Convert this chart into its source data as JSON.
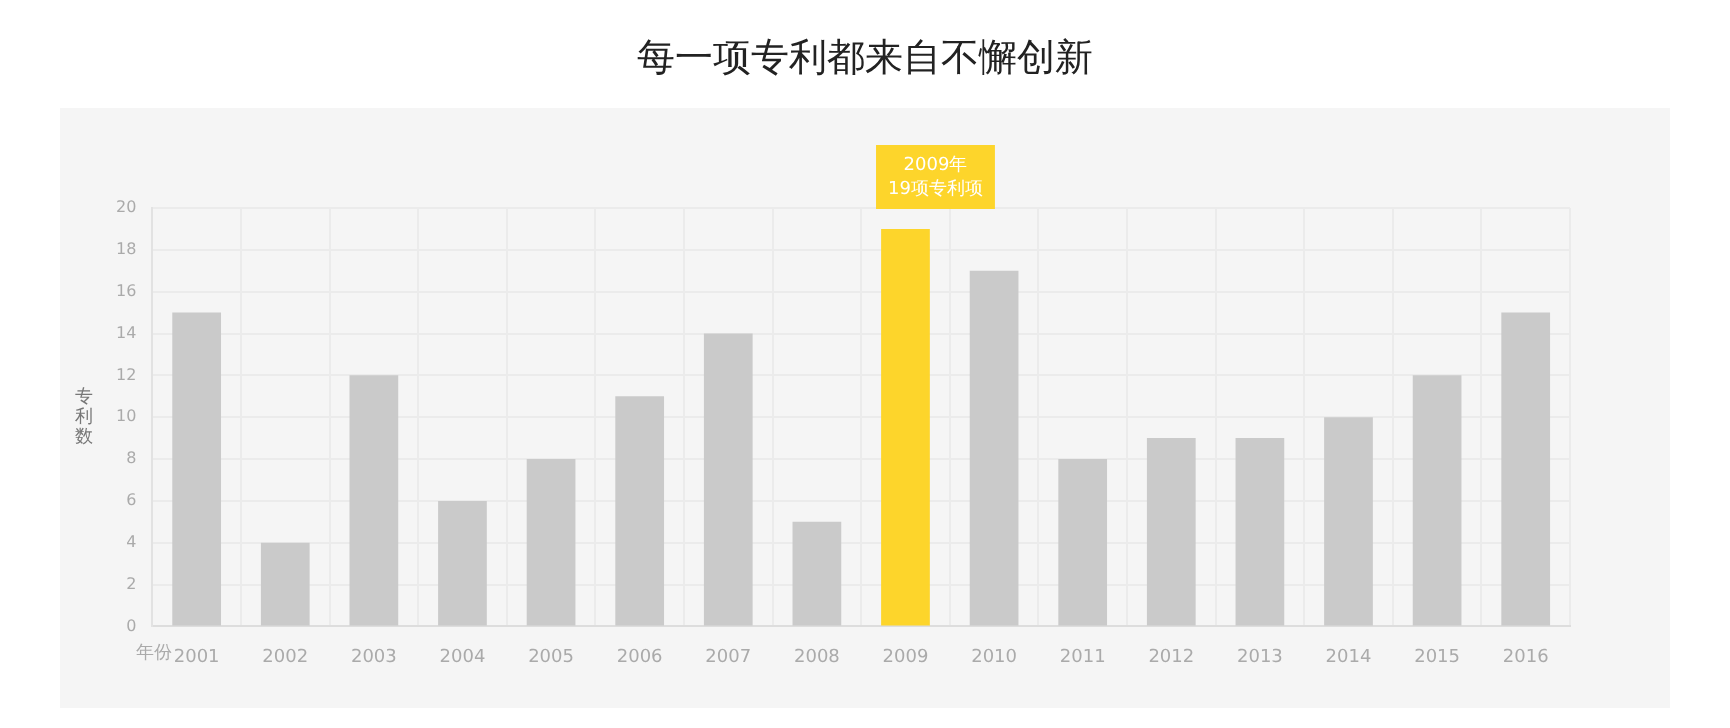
{
  "chart_data": {
    "type": "bar",
    "title": "每一项专利都来自不懈创新",
    "xlabel": "年份",
    "ylabel": "专利数",
    "categories": [
      "2001",
      "2002",
      "2003",
      "2004",
      "2005",
      "2006",
      "2007",
      "2008",
      "2009",
      "2010",
      "2011",
      "2012",
      "2013",
      "2014",
      "2015",
      "2016"
    ],
    "values": [
      15,
      4,
      12,
      6,
      8,
      11,
      14,
      5,
      19,
      17,
      8,
      9,
      9,
      10,
      12,
      15
    ],
    "colors": [
      "#cacaca",
      "#cacaca",
      "#cacaca",
      "#cacaca",
      "#cacaca",
      "#cacaca",
      "#cacaca",
      "#cacaca",
      "#fdd52b",
      "#cacaca",
      "#cacaca",
      "#cacaca",
      "#cacaca",
      "#cacaca",
      "#cacaca",
      "#cacaca"
    ],
    "ylim": [
      0,
      20
    ],
    "yticks": [
      0,
      2,
      4,
      6,
      8,
      10,
      12,
      14,
      16,
      18,
      20
    ],
    "grid": true,
    "annotations": [
      {
        "text": "2009年\n19项专利项",
        "x": "2009",
        "y": 19
      }
    ]
  }
}
